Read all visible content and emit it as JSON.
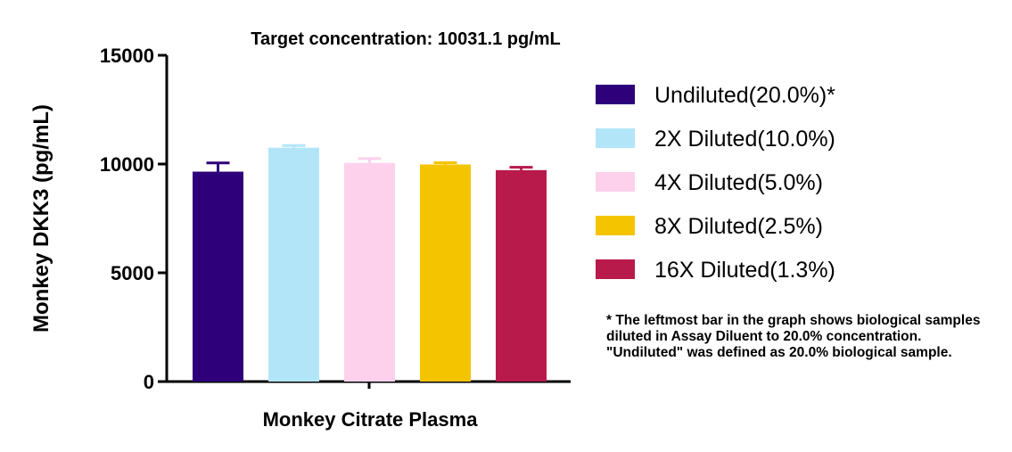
{
  "chart_data": {
    "type": "bar",
    "title": "Target concentration: 10031.1 pg/mL",
    "xlabel": "Monkey Citrate Plasma",
    "ylabel": "Monkey DKK3 (pg/mL)",
    "ylim": [
      0,
      15000
    ],
    "yticks": [
      0,
      5000,
      10000,
      15000
    ],
    "ytick_labels": [
      "0",
      "5000",
      "10000",
      "15000"
    ],
    "grid": false,
    "legend_position": "right",
    "series": [
      {
        "name": "Undiluted(20.0%)*",
        "value": 9650,
        "error": 400,
        "color": "#2e0079"
      },
      {
        "name": "2X Diluted(10.0%)",
        "value": 10750,
        "error": 100,
        "color": "#b3e5f9"
      },
      {
        "name": "4X Diluted(5.0%)",
        "value": 10050,
        "error": 200,
        "color": "#fdd1ec"
      },
      {
        "name": "8X Diluted(2.5%)",
        "value": 9980,
        "error": 80,
        "color": "#f5c400"
      },
      {
        "name": "16X Diluted(1.3%)",
        "value": 9720,
        "error": 130,
        "color": "#b81a4c"
      }
    ]
  },
  "footnote": "* The leftmost bar in the graph shows biological samples diluted in Assay Diluent to 20.0% concentration. \"Undiluted\" was defined as 20.0% biological sample."
}
